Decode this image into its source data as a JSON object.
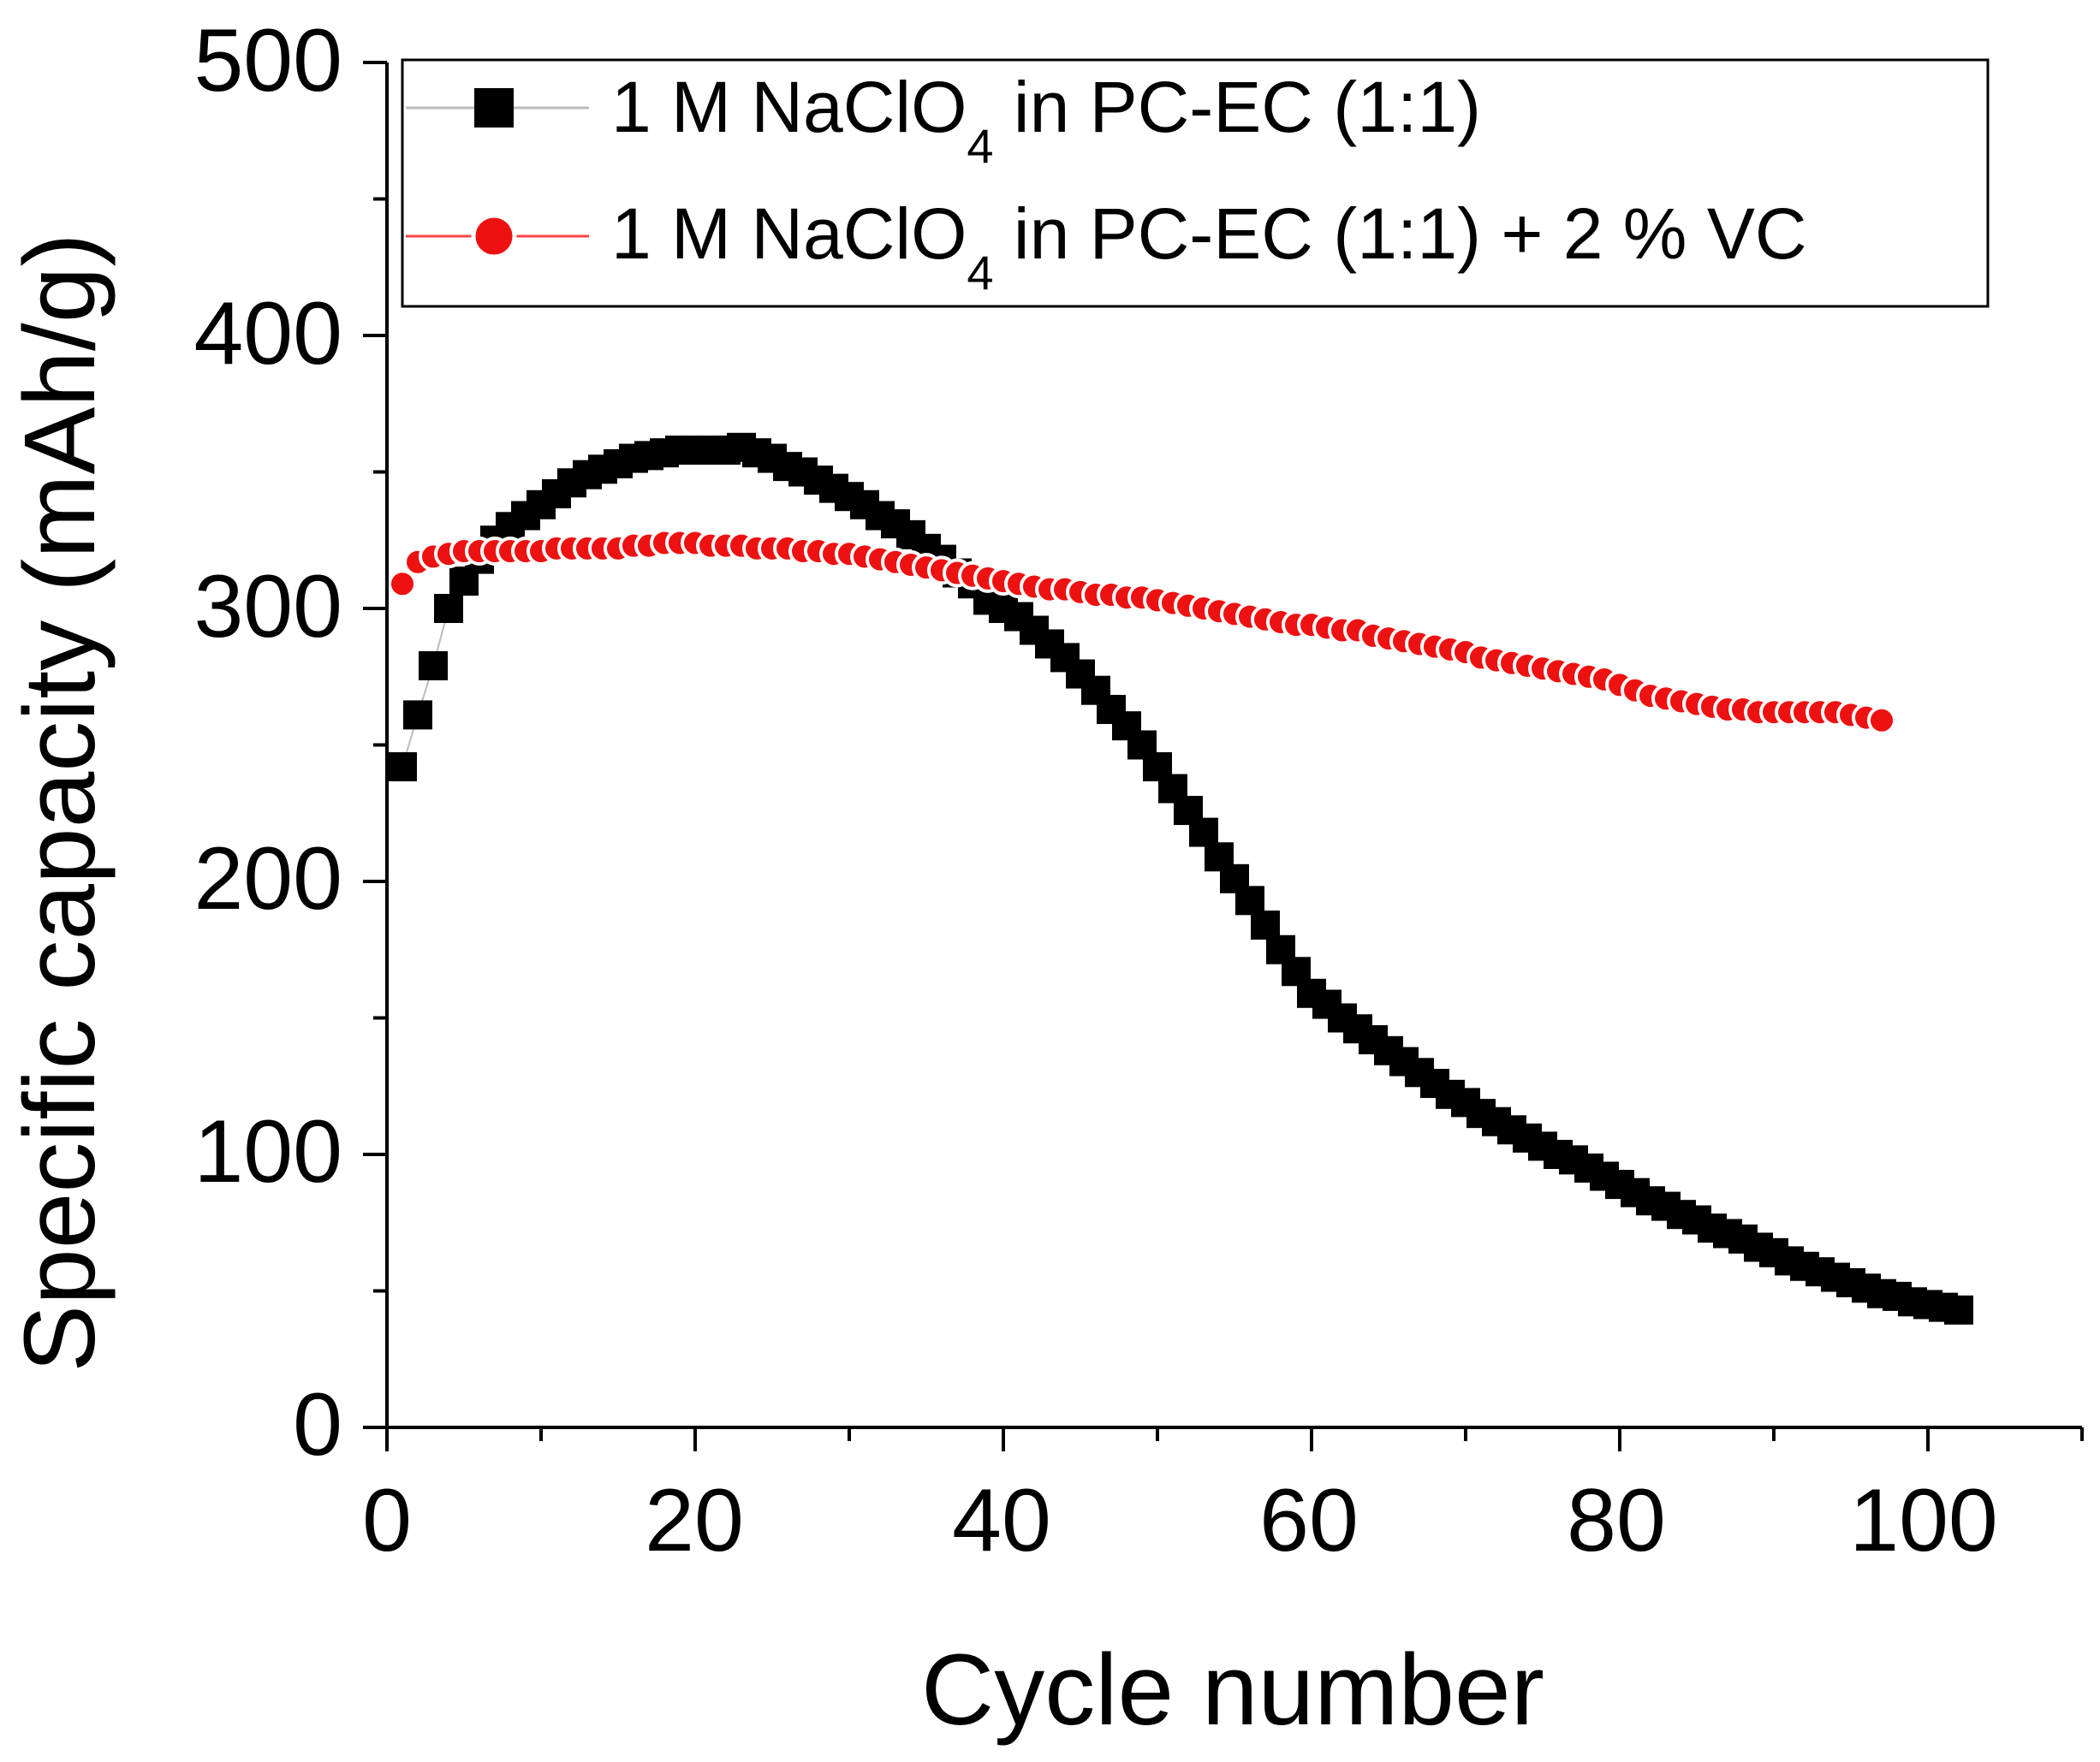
{
  "chart_data": {
    "type": "scatter",
    "title": "",
    "xlabel": "Cycle number",
    "ylabel": "Specific capacity (mAh/g)",
    "xlim": [
      0,
      110
    ],
    "ylim": [
      0,
      500
    ],
    "x_ticks": [
      0,
      20,
      40,
      60,
      80,
      100
    ],
    "y_ticks": [
      0,
      100,
      200,
      300,
      400,
      500
    ],
    "x_tick_labels": [
      "0",
      "20",
      "40",
      "60",
      "80",
      "100"
    ],
    "y_tick_labels": [
      "0",
      "100",
      "200",
      "300",
      "400",
      "500"
    ],
    "legend_position": "top-right",
    "series": [
      {
        "name": "1 M NaClO4 in PC-EC (1:1)",
        "label_parts": [
          "1 M NaClO",
          "4",
          " in PC-EC (1:1)"
        ],
        "marker": "square",
        "color": "#000000",
        "line_color": "#bbbbbb",
        "x": [
          1,
          2,
          3,
          4,
          5,
          6,
          7,
          8,
          9,
          10,
          11,
          12,
          13,
          14,
          15,
          16,
          17,
          18,
          19,
          20,
          21,
          22,
          23,
          24,
          25,
          26,
          27,
          28,
          29,
          30,
          31,
          32,
          33,
          34,
          35,
          36,
          37,
          38,
          39,
          40,
          41,
          42,
          43,
          44,
          45,
          46,
          47,
          48,
          49,
          50,
          51,
          52,
          53,
          54,
          55,
          56,
          57,
          58,
          59,
          60,
          61,
          62,
          63,
          64,
          65,
          66,
          67,
          68,
          69,
          70,
          71,
          72,
          73,
          74,
          75,
          76,
          77,
          78,
          79,
          80,
          81,
          82,
          83,
          84,
          85,
          86,
          87,
          88,
          89,
          90,
          91,
          92,
          93,
          94,
          95,
          96,
          97,
          98,
          99,
          100,
          101,
          102
        ],
        "values": [
          242,
          261,
          279,
          300,
          310,
          318,
          325,
          330,
          334,
          338,
          342,
          346,
          349,
          351,
          353,
          355,
          356,
          357,
          358,
          358,
          358,
          358,
          359,
          357,
          355,
          352,
          350,
          347,
          344,
          341,
          338,
          334,
          331,
          327,
          322,
          318,
          313,
          309,
          303,
          300,
          297,
          292,
          287,
          282,
          276,
          270,
          263,
          257,
          250,
          242,
          234,
          226,
          218,
          209,
          201,
          193,
          184,
          175,
          167,
          159,
          155,
          150,
          146,
          142,
          138,
          134,
          130,
          126,
          122,
          119,
          115,
          112,
          109,
          106,
          103,
          100,
          98,
          95,
          92,
          89,
          86,
          83,
          81,
          78,
          76,
          73,
          71,
          69,
          66,
          64,
          61,
          59,
          57,
          55,
          53,
          51,
          49,
          48,
          46,
          45,
          44,
          43
        ]
      },
      {
        "name": "1 M NaClO4 in PC-EC (1:1) + 2 % VC",
        "label_parts": [
          "1 M NaClO",
          "4",
          " in PC-EC (1:1) + 2 % VC"
        ],
        "marker": "circle",
        "color": "#ee1111",
        "line_color": "#ff4444",
        "x": [
          1,
          2,
          3,
          4,
          5,
          6,
          7,
          8,
          9,
          10,
          11,
          12,
          13,
          14,
          15,
          16,
          17,
          18,
          19,
          20,
          21,
          22,
          23,
          24,
          25,
          26,
          27,
          28,
          29,
          30,
          31,
          32,
          33,
          34,
          35,
          36,
          37,
          38,
          39,
          40,
          41,
          42,
          43,
          44,
          45,
          46,
          47,
          48,
          49,
          50,
          51,
          52,
          53,
          54,
          55,
          56,
          57,
          58,
          59,
          60,
          61,
          62,
          63,
          64,
          65,
          66,
          67,
          68,
          69,
          70,
          71,
          72,
          73,
          74,
          75,
          76,
          77,
          78,
          79,
          80,
          81,
          82,
          83,
          84,
          85,
          86,
          87,
          88,
          89,
          90,
          91,
          92,
          93,
          94,
          95,
          96,
          97
        ],
        "values": [
          309,
          317,
          319,
          320,
          321,
          321,
          321,
          321,
          321,
          321,
          322,
          322,
          322,
          322,
          322,
          323,
          323,
          324,
          324,
          324,
          323,
          323,
          323,
          322,
          322,
          322,
          321,
          321,
          320,
          320,
          319,
          318,
          317,
          316,
          315,
          314,
          313,
          312,
          311,
          310,
          309,
          308,
          307,
          307,
          306,
          305,
          305,
          304,
          304,
          303,
          302,
          301,
          300,
          299,
          298,
          297,
          296,
          295,
          294,
          294,
          293,
          292,
          292,
          290,
          289,
          288,
          287,
          286,
          285,
          284,
          282,
          281,
          280,
          279,
          278,
          277,
          276,
          275,
          274,
          272,
          270,
          268,
          267,
          266,
          265,
          264,
          263,
          263,
          262,
          262,
          262,
          262,
          262,
          262,
          261,
          260,
          259
        ]
      }
    ]
  }
}
